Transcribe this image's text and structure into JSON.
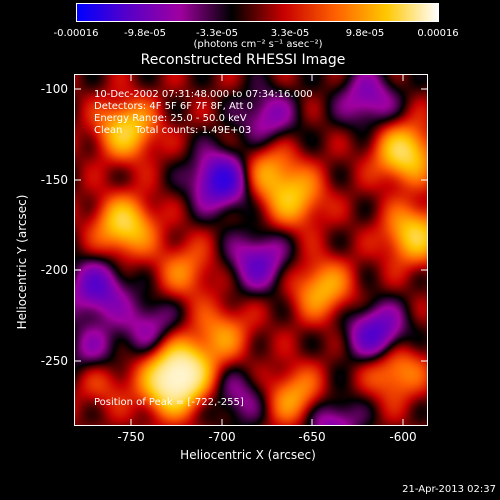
{
  "colorbar": {
    "ticks": [
      "-0.00016",
      "-9.8e-05",
      "-3.3e-05",
      "3.3e-05",
      "9.8e-05",
      "0.00016"
    ],
    "units": "(photons cm⁻² s⁻¹ asec⁻²)",
    "colors": [
      "#0000ff",
      "#5a00c8",
      "#a000a0",
      "#000000",
      "#c80000",
      "#ff6000",
      "#ffc800",
      "#ffffff"
    ]
  },
  "plot": {
    "title": "Reconstructed RHESSI Image",
    "annotation": {
      "time": "10-Dec-2002 07:31:48.000 to 07:34:16.000",
      "detectors": "Detectors: 4F 5F 6F 7F 8F, Att 0",
      "energy": "Energy Range: 25.0 - 50.0 keV",
      "clean": "Clean    Total counts: 1.49E+03"
    },
    "peak": "Position of Peak = [-722,-255]",
    "xlabel": "Heliocentric X (arcsec)",
    "ylabel": "Heliocentric Y (arcsec)",
    "xticks": [
      "-750",
      "-700",
      "-650",
      "-600"
    ],
    "yticks": [
      "-100",
      "-150",
      "-200",
      "-250"
    ]
  },
  "footer": {
    "timestamp": "21-Apr-2013 02:37"
  },
  "chart_data": {
    "type": "heatmap",
    "title": "Reconstructed RHESSI Image",
    "xlabel": "Heliocentric X (arcsec)",
    "ylabel": "Heliocentric Y (arcsec)",
    "xlim": [
      -780,
      -588
    ],
    "ylim": [
      -285,
      -92
    ],
    "colorbar_range": [
      -0.00016,
      0.00016
    ],
    "peak": [
      -722,
      -255
    ],
    "blobs": [
      {
        "x": -722,
        "y": -255,
        "w": 1.0
      },
      {
        "x": -752,
        "y": -122,
        "w": 0.75
      },
      {
        "x": -753,
        "y": -175,
        "w": 0.8
      },
      {
        "x": -728,
        "y": -265,
        "w": 0.7
      },
      {
        "x": -600,
        "y": -135,
        "w": 0.85
      },
      {
        "x": -595,
        "y": -180,
        "w": 0.75
      },
      {
        "x": -605,
        "y": -255,
        "w": 0.55
      },
      {
        "x": -675,
        "y": -145,
        "w": 0.5
      },
      {
        "x": -660,
        "y": -160,
        "w": 0.6
      },
      {
        "x": -645,
        "y": -210,
        "w": 0.6
      },
      {
        "x": -700,
        "y": -235,
        "w": 0.45
      },
      {
        "x": -660,
        "y": -270,
        "w": 0.55
      },
      {
        "x": -720,
        "y": -200,
        "w": 0.4
      },
      {
        "x": -765,
        "y": -260,
        "w": 0.3
      },
      {
        "x": -700,
        "y": -150,
        "w": -0.9
      },
      {
        "x": -675,
        "y": -115,
        "w": -0.45
      },
      {
        "x": -768,
        "y": -210,
        "w": -0.65
      },
      {
        "x": -770,
        "y": -245,
        "w": -0.4
      },
      {
        "x": -680,
        "y": -195,
        "w": -0.6
      },
      {
        "x": -615,
        "y": -235,
        "w": -0.75
      },
      {
        "x": -640,
        "y": -285,
        "w": -0.5
      },
      {
        "x": -740,
        "y": -230,
        "w": -0.4
      },
      {
        "x": -620,
        "y": -105,
        "w": -0.5
      },
      {
        "x": -690,
        "y": -270,
        "w": -0.35
      }
    ]
  }
}
